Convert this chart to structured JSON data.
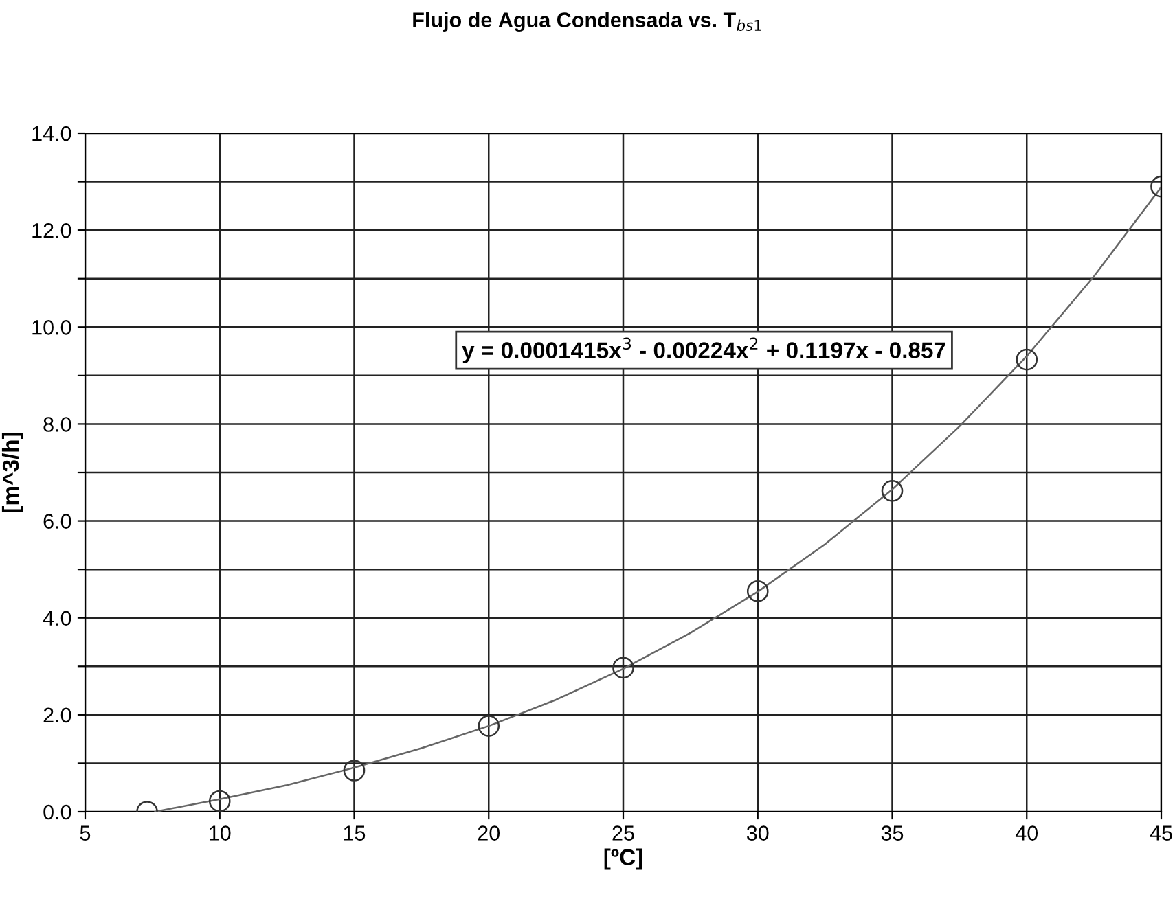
{
  "chart_data": {
    "type": "scatter",
    "title": "Flujo de Agua Condensada vs. T$_{bs1}$",
    "xlabel": "[ºC]",
    "ylabel": "[m^3/h]",
    "annotations": [
      "y = 0.0001415x$^{3}$ - 0.00224x$^{2}$ + 0.1197x - 0.857"
    ],
    "series": [
      {
        "type": "scatter",
        "color": "#333333",
        "marker": "circle",
        "x": [
          7.3,
          10,
          15,
          20,
          25,
          30,
          35,
          40,
          45
        ],
        "values": [
          0.0,
          0.22,
          0.85,
          1.77,
          2.97,
          4.55,
          6.62,
          9.33,
          12.9
        ]
      },
      {
        "type": "line",
        "color": "#666666",
        "line_style": "solid",
        "marker": "none",
        "x": [
          7.6,
          10,
          12.5,
          15,
          17.5,
          20,
          22.5,
          25,
          27.5,
          30,
          32.5,
          35,
          37.5,
          40,
          42.5,
          45
        ],
        "values": [
          0.0,
          0.26,
          0.55,
          0.91,
          1.31,
          1.77,
          2.31,
          2.95,
          3.69,
          4.54,
          5.52,
          6.65,
          7.95,
          9.4,
          11.05,
          12.89
        ]
      }
    ],
    "xlim": [
      5,
      45
    ],
    "xticks": [
      5,
      10,
      15,
      20,
      25,
      30,
      35,
      40,
      45
    ],
    "ylim": [
      0,
      14
    ],
    "yticks": [
      {
        "value": 0,
        "label": "0.0"
      },
      {
        "value": 1,
        "label": null
      },
      {
        "value": 2,
        "label": "2.0"
      },
      {
        "value": 3,
        "label": null
      },
      {
        "value": 4,
        "label": "4.0"
      },
      {
        "value": 5,
        "label": null
      },
      {
        "value": 6,
        "label": "6.0"
      },
      {
        "value": 7,
        "label": null
      },
      {
        "value": 8,
        "label": "8.0"
      },
      {
        "value": 9,
        "label": null
      },
      {
        "value": 10,
        "label": "10.0"
      },
      {
        "value": 11,
        "label": null
      },
      {
        "value": 12,
        "label": "12.0"
      },
      {
        "value": 13,
        "label": null
      },
      {
        "value": 14,
        "label": "14.0"
      }
    ],
    "grid": true,
    "legend": false
  }
}
